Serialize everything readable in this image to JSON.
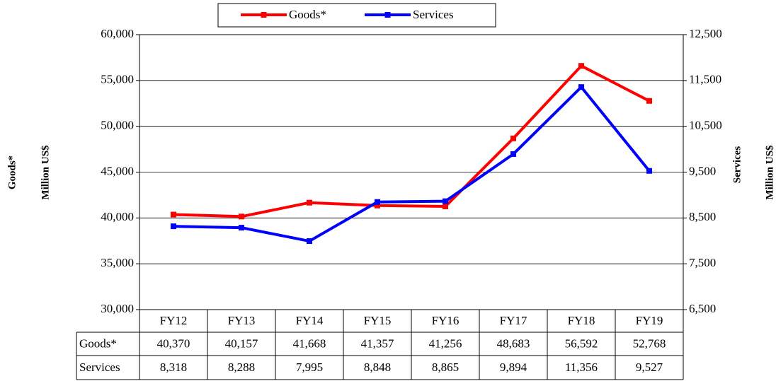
{
  "chart_data": {
    "type": "line",
    "categories": [
      "FY12",
      "FY13",
      "FY14",
      "FY15",
      "FY16",
      "FY17",
      "FY18",
      "FY19"
    ],
    "series": [
      {
        "name": "Goods*",
        "color": "#ff0000",
        "axis": "y",
        "values": [
          40370,
          40157,
          41668,
          41357,
          41256,
          48683,
          56592,
          52768
        ],
        "value_labels": [
          "40,370",
          "40,157",
          "41,668",
          "41,357",
          "41,256",
          "48,683",
          "56,592",
          "52,768"
        ]
      },
      {
        "name": "Services",
        "color": "#0000ff",
        "axis": "y2",
        "values": [
          8318,
          8288,
          7995,
          8848,
          8865,
          9894,
          11356,
          9527
        ],
        "value_labels": [
          "8,318",
          "8,288",
          "7,995",
          "8,848",
          "8,865",
          "9,894",
          "11,356",
          "9,527"
        ]
      }
    ],
    "ylabel": [
      "Goods*",
      "Million US$"
    ],
    "y2label": [
      "Services",
      "Million US$"
    ],
    "ylim": [
      30000,
      60000
    ],
    "yticks": [
      {
        "value": 30000,
        "label": "30,000"
      },
      {
        "value": 35000,
        "label": "35,000"
      },
      {
        "value": 40000,
        "label": "40,000"
      },
      {
        "value": 45000,
        "label": "45,000"
      },
      {
        "value": 50000,
        "label": "50,000"
      },
      {
        "value": 55000,
        "label": "55,000"
      },
      {
        "value": 60000,
        "label": "60,000"
      }
    ],
    "y2lim": [
      6500,
      12500
    ],
    "y2ticks": [
      {
        "value": 6500,
        "label": "6,500"
      },
      {
        "value": 7500,
        "label": "7,500"
      },
      {
        "value": 8500,
        "label": "8,500"
      },
      {
        "value": 9500,
        "label": "9,500"
      },
      {
        "value": 10500,
        "label": "10,500"
      },
      {
        "value": 11500,
        "label": "11,500"
      },
      {
        "value": 12500,
        "label": "12,500"
      }
    ],
    "grid": true,
    "legend": "top"
  }
}
